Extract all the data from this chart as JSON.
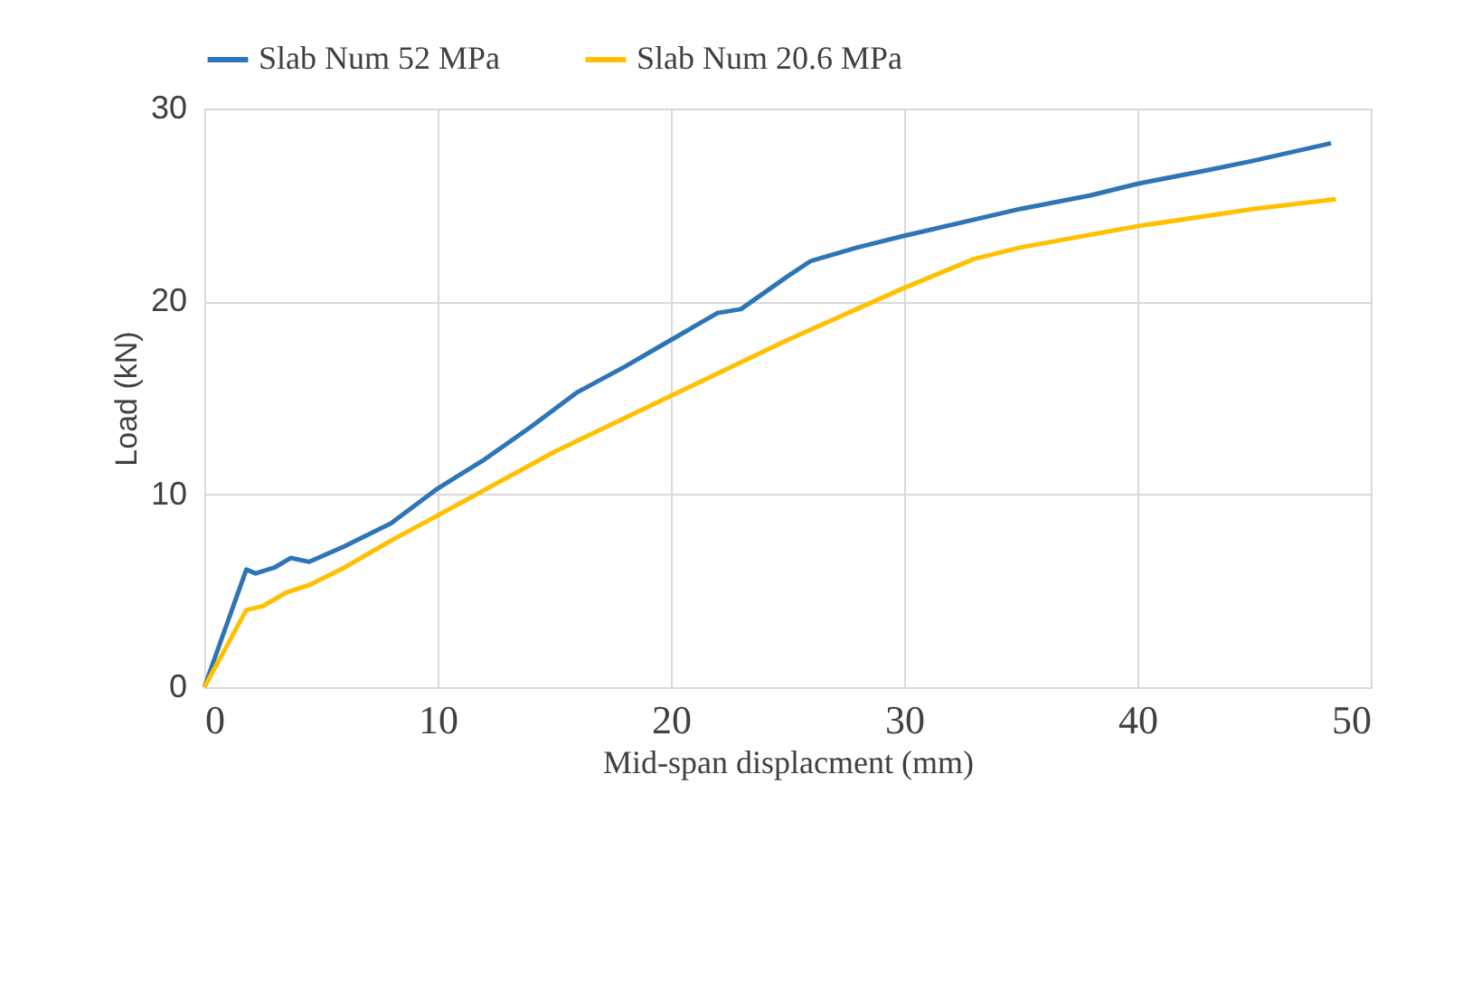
{
  "chart_data": {
    "type": "line",
    "xlabel": "Mid-span displacment (mm)",
    "ylabel": "Load (kN)",
    "xlim": [
      0,
      50
    ],
    "xticks": [
      0,
      10,
      20,
      30,
      40,
      50
    ],
    "ylim": [
      0,
      30
    ],
    "yticks": [
      0,
      10,
      20,
      30
    ],
    "grid": true,
    "legend": "top",
    "marker": "none",
    "line_style": "solid",
    "series": [
      {
        "name": "Slab Num 52 MPa",
        "color": "#2e75b6",
        "x": [
          0,
          1.8,
          2.2,
          3,
          3.7,
          4.5,
          6,
          8,
          10,
          12,
          14,
          16,
          18,
          20,
          22,
          23,
          25,
          26,
          28,
          30,
          35,
          38,
          40,
          43,
          45,
          48.3
        ],
        "values": [
          0,
          6.1,
          5.9,
          6.2,
          6.7,
          6.5,
          7.3,
          8.5,
          10.3,
          11.8,
          13.5,
          15.3,
          16.6,
          18,
          19.4,
          19.6,
          21.3,
          22.1,
          22.8,
          23.4,
          24.8,
          25.5,
          26.1,
          26.8,
          27.3,
          28.2
        ]
      },
      {
        "name": "Slab Num 20.6 MPa",
        "color": "#ffc000",
        "x": [
          0,
          1.8,
          2.5,
          3.5,
          4.5,
          6,
          8,
          10,
          15,
          20,
          25,
          30,
          33,
          35,
          40,
          45,
          48.5
        ],
        "values": [
          0,
          4.0,
          4.2,
          4.9,
          5.3,
          6.2,
          7.6,
          8.9,
          12.2,
          15.1,
          18.0,
          20.7,
          22.2,
          22.8,
          23.9,
          24.8,
          25.3
        ]
      }
    ]
  }
}
